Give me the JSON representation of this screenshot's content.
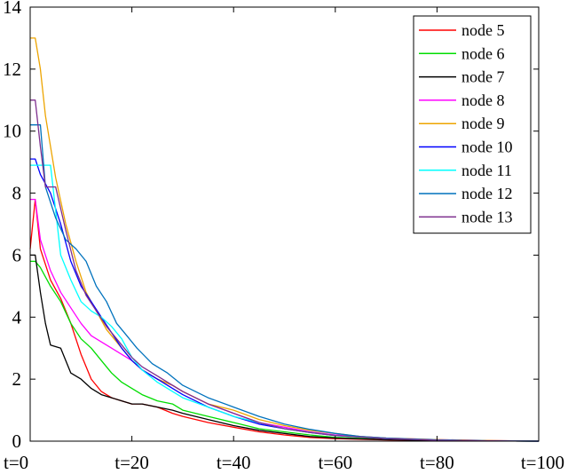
{
  "chart_data": {
    "type": "line",
    "title": "",
    "xlabel": "",
    "ylabel": "",
    "xlim": [
      0,
      100
    ],
    "ylim": [
      0,
      14
    ],
    "xticks": [
      0,
      20,
      40,
      60,
      80,
      100
    ],
    "xtick_labels": [
      "t=0",
      "t=20",
      "t=40",
      "t=60",
      "t=80",
      "t=100"
    ],
    "yticks": [
      0,
      2,
      4,
      6,
      8,
      10,
      12,
      14
    ],
    "ytick_labels": [
      "0",
      "2",
      "4",
      "6",
      "8",
      "10",
      "12",
      "14"
    ],
    "grid": false,
    "legend_position": "top-right",
    "series": [
      {
        "name": "node 5",
        "color": "#ff0000",
        "x": [
          0,
          1,
          2,
          4,
          6,
          8,
          10,
          12,
          14,
          16,
          18,
          20,
          22,
          25,
          28,
          30,
          35,
          40,
          45,
          50,
          55,
          60,
          70,
          80,
          90,
          100
        ],
        "y": [
          6.2,
          7.8,
          6.2,
          5.2,
          4.6,
          3.8,
          2.8,
          2.0,
          1.6,
          1.4,
          1.3,
          1.2,
          1.2,
          1.1,
          0.9,
          0.8,
          0.6,
          0.45,
          0.3,
          0.2,
          0.12,
          0.08,
          0.04,
          0.02,
          0.01,
          0.0
        ]
      },
      {
        "name": "node 6",
        "color": "#00dd00",
        "x": [
          0,
          1,
          2,
          4,
          6,
          8,
          10,
          12,
          14,
          16,
          18,
          20,
          22,
          25,
          28,
          30,
          35,
          40,
          45,
          50,
          55,
          60,
          70,
          80,
          90,
          100
        ],
        "y": [
          5.8,
          5.8,
          5.6,
          5.0,
          4.5,
          3.8,
          3.3,
          3.0,
          2.6,
          2.2,
          1.9,
          1.7,
          1.5,
          1.3,
          1.2,
          1.0,
          0.8,
          0.6,
          0.4,
          0.3,
          0.2,
          0.12,
          0.06,
          0.03,
          0.01,
          0.0
        ]
      },
      {
        "name": "node 7",
        "color": "#000000",
        "x": [
          0,
          1,
          2,
          3,
          4,
          6,
          8,
          10,
          12,
          14,
          16,
          18,
          20,
          22,
          25,
          28,
          30,
          35,
          40,
          45,
          50,
          55,
          60,
          70,
          80,
          90,
          100
        ],
        "y": [
          6.0,
          6.0,
          4.8,
          3.8,
          3.1,
          3.0,
          2.2,
          2.0,
          1.7,
          1.5,
          1.4,
          1.3,
          1.2,
          1.2,
          1.1,
          1.0,
          0.9,
          0.7,
          0.5,
          0.35,
          0.25,
          0.15,
          0.1,
          0.05,
          0.02,
          0.01,
          0.0
        ]
      },
      {
        "name": "node 8",
        "color": "#ff00ff",
        "x": [
          0,
          1,
          2,
          4,
          6,
          8,
          10,
          12,
          14,
          16,
          18,
          20,
          22,
          25,
          28,
          30,
          35,
          40,
          45,
          50,
          55,
          60,
          70,
          80,
          90,
          100
        ],
        "y": [
          7.8,
          7.8,
          6.5,
          5.5,
          4.8,
          4.3,
          3.8,
          3.4,
          3.2,
          3.0,
          2.8,
          2.6,
          2.3,
          2.0,
          1.8,
          1.6,
          1.2,
          0.9,
          0.6,
          0.45,
          0.3,
          0.2,
          0.1,
          0.05,
          0.02,
          0.0
        ]
      },
      {
        "name": "node 9",
        "color": "#eda400",
        "x": [
          0,
          1,
          2,
          3,
          5,
          7,
          9,
          11,
          13,
          15,
          17,
          20,
          22,
          25,
          28,
          30,
          35,
          40,
          45,
          50,
          55,
          60,
          65,
          70,
          80,
          90,
          100
        ],
        "y": [
          13.0,
          13.0,
          12.0,
          10.5,
          8.5,
          7.0,
          5.8,
          4.8,
          4.2,
          3.6,
          3.2,
          2.6,
          2.3,
          2.0,
          1.8,
          1.6,
          1.2,
          1.0,
          0.7,
          0.5,
          0.35,
          0.25,
          0.15,
          0.1,
          0.05,
          0.02,
          0.0
        ]
      },
      {
        "name": "node 10",
        "color": "#0000ff",
        "x": [
          0,
          1,
          2,
          4,
          6,
          8,
          10,
          12,
          14,
          16,
          18,
          20,
          22,
          25,
          28,
          30,
          35,
          40,
          45,
          50,
          55,
          60,
          70,
          80,
          90,
          100
        ],
        "y": [
          9.1,
          9.1,
          8.6,
          8.0,
          7.0,
          5.8,
          5.0,
          4.5,
          4.0,
          3.5,
          3.0,
          2.6,
          2.3,
          2.0,
          1.7,
          1.5,
          1.1,
          0.8,
          0.55,
          0.4,
          0.28,
          0.18,
          0.09,
          0.04,
          0.01,
          0.0
        ]
      },
      {
        "name": "node 11",
        "color": "#00ffff",
        "x": [
          0,
          1,
          2,
          4,
          6,
          8,
          10,
          12,
          14,
          16,
          18,
          20,
          22,
          25,
          28,
          30,
          35,
          40,
          45,
          50,
          55,
          60,
          70,
          80,
          90,
          100
        ],
        "y": [
          8.9,
          8.9,
          8.9,
          8.9,
          6.0,
          5.2,
          4.5,
          4.2,
          4.0,
          3.7,
          3.3,
          2.7,
          2.3,
          1.9,
          1.6,
          1.4,
          1.1,
          0.8,
          0.6,
          0.4,
          0.28,
          0.18,
          0.08,
          0.04,
          0.01,
          0.0
        ]
      },
      {
        "name": "node 12",
        "color": "#0072bd",
        "x": [
          0,
          1,
          2,
          3,
          5,
          7,
          9,
          11,
          13,
          15,
          17,
          19,
          21,
          24,
          27,
          30,
          35,
          40,
          45,
          50,
          55,
          60,
          65,
          70,
          80,
          90,
          100
        ],
        "y": [
          10.2,
          10.2,
          10.2,
          8.2,
          7.2,
          6.5,
          6.2,
          5.8,
          5.0,
          4.5,
          3.8,
          3.4,
          3.0,
          2.5,
          2.2,
          1.8,
          1.4,
          1.1,
          0.8,
          0.55,
          0.38,
          0.25,
          0.15,
          0.1,
          0.04,
          0.01,
          0.0
        ]
      },
      {
        "name": "node 13",
        "color": "#7e2f8e",
        "x": [
          0,
          1,
          2,
          3,
          5,
          7,
          9,
          11,
          13,
          15,
          17,
          20,
          22,
          25,
          28,
          30,
          35,
          40,
          45,
          50,
          55,
          60,
          70,
          80,
          90,
          100
        ],
        "y": [
          11.0,
          11.0,
          9.5,
          8.2,
          8.2,
          6.8,
          5.5,
          4.7,
          4.2,
          3.7,
          3.3,
          2.7,
          2.4,
          2.1,
          1.8,
          1.6,
          1.2,
          0.9,
          0.6,
          0.4,
          0.28,
          0.18,
          0.08,
          0.03,
          0.01,
          0.0
        ]
      }
    ]
  }
}
